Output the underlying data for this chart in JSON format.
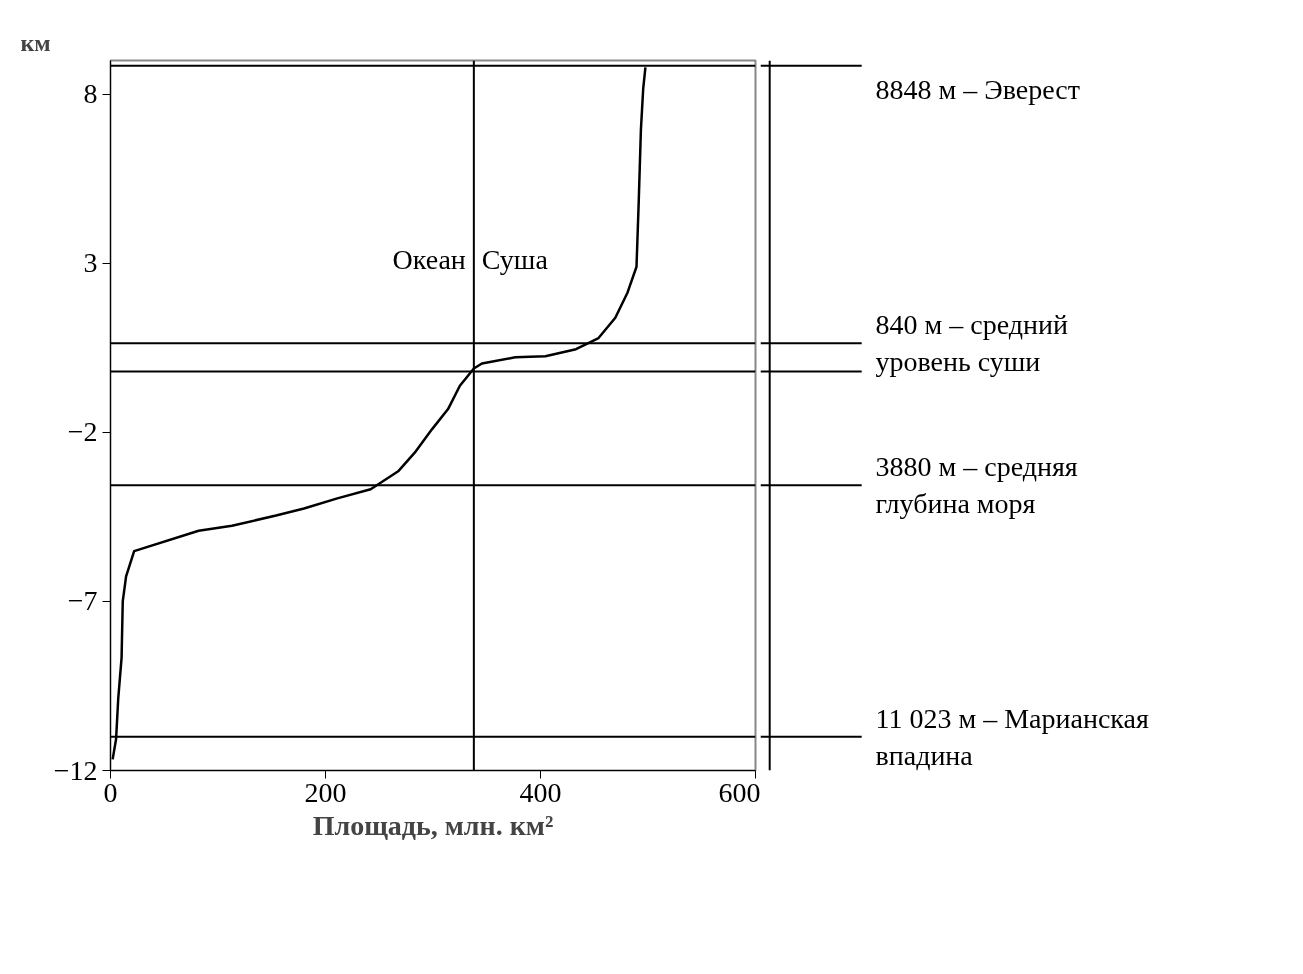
{
  "chart_data": {
    "type": "line",
    "xlabel": "Площадь, млн. км²",
    "ylabel": "км",
    "x": [
      497.6,
      495.5,
      493.4,
      491.4,
      489.3,
      481,
      469.6,
      454,
      433,
      404.5,
      376.5,
      345.5,
      338,
      325,
      314,
      299,
      283,
      268,
      242,
      211,
      180,
      154,
      113,
      82,
      22,
      14.5,
      11.4,
      10.3,
      7.2,
      5.2,
      2
    ],
    "series": [
      {
        "color": "#000000",
        "values": [
          8.8,
          8.15,
          6.95,
          4.85,
          2.9,
          2.14,
          1.39,
          0.79,
          0.46,
          0.25,
          0.22,
          0.04,
          -0.11,
          -0.62,
          -1.31,
          -1.91,
          -2.6,
          -3.14,
          -3.68,
          -3.95,
          -4.25,
          -4.46,
          -4.76,
          -4.91,
          -5.51,
          -6.26,
          -7.0,
          -8.67,
          -9.87,
          -11.07,
          -11.67
        ]
      }
    ],
    "xlim": [
      0,
      600
    ],
    "ylim": [
      -12,
      9
    ],
    "xticks": [
      0,
      200,
      400,
      600
    ],
    "yticks": [
      8,
      3,
      -2,
      -7,
      -12
    ],
    "grid": false,
    "marker": "none",
    "line_style": "solid",
    "ref_lines": [
      {
        "axis": "y",
        "value": 8.848,
        "label": "8848 м – Эверест"
      },
      {
        "axis": "y",
        "value": 0.64,
        "label": "840 м – средний уровень суши"
      },
      {
        "axis": "y",
        "value": -0.2,
        "label": null
      },
      {
        "axis": "y",
        "value": -3.56,
        "label": "3880 м – средняя глубина моря"
      },
      {
        "axis": "y",
        "value": -11.0,
        "label": "11 023 м – Марианская впадина"
      },
      {
        "axis": "x",
        "value": 338,
        "label": null
      }
    ],
    "annotations": [
      "Океан",
      "Суша"
    ]
  }
}
